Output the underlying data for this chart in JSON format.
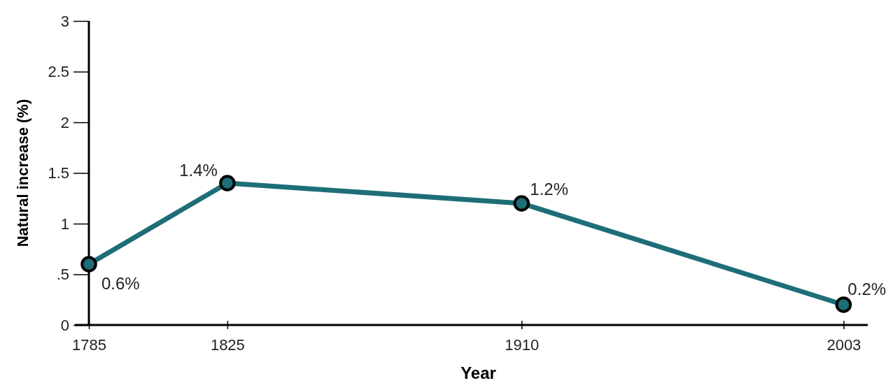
{
  "chart_data": {
    "type": "line",
    "xlabel": "Year",
    "ylabel": "Natural increase (%)",
    "x": [
      1785,
      1825,
      1910,
      2003
    ],
    "series": [
      {
        "color": "#1e6e78",
        "values": [
          0.6,
          1.4,
          1.2,
          0.2
        ],
        "value_labels": [
          "0.6%",
          "1.4%",
          "1.2%",
          "0.2%"
        ]
      }
    ],
    "xlim": [
      1785,
      2010
    ],
    "xticks": [
      1785,
      1825,
      1910,
      2003
    ],
    "ylim": [
      0,
      3
    ],
    "yticks": [
      0,
      {
        "value": 0.5,
        "label": ".5"
      },
      1,
      1.5,
      2,
      2.5,
      3
    ],
    "marker": "circle",
    "grid": false
  }
}
